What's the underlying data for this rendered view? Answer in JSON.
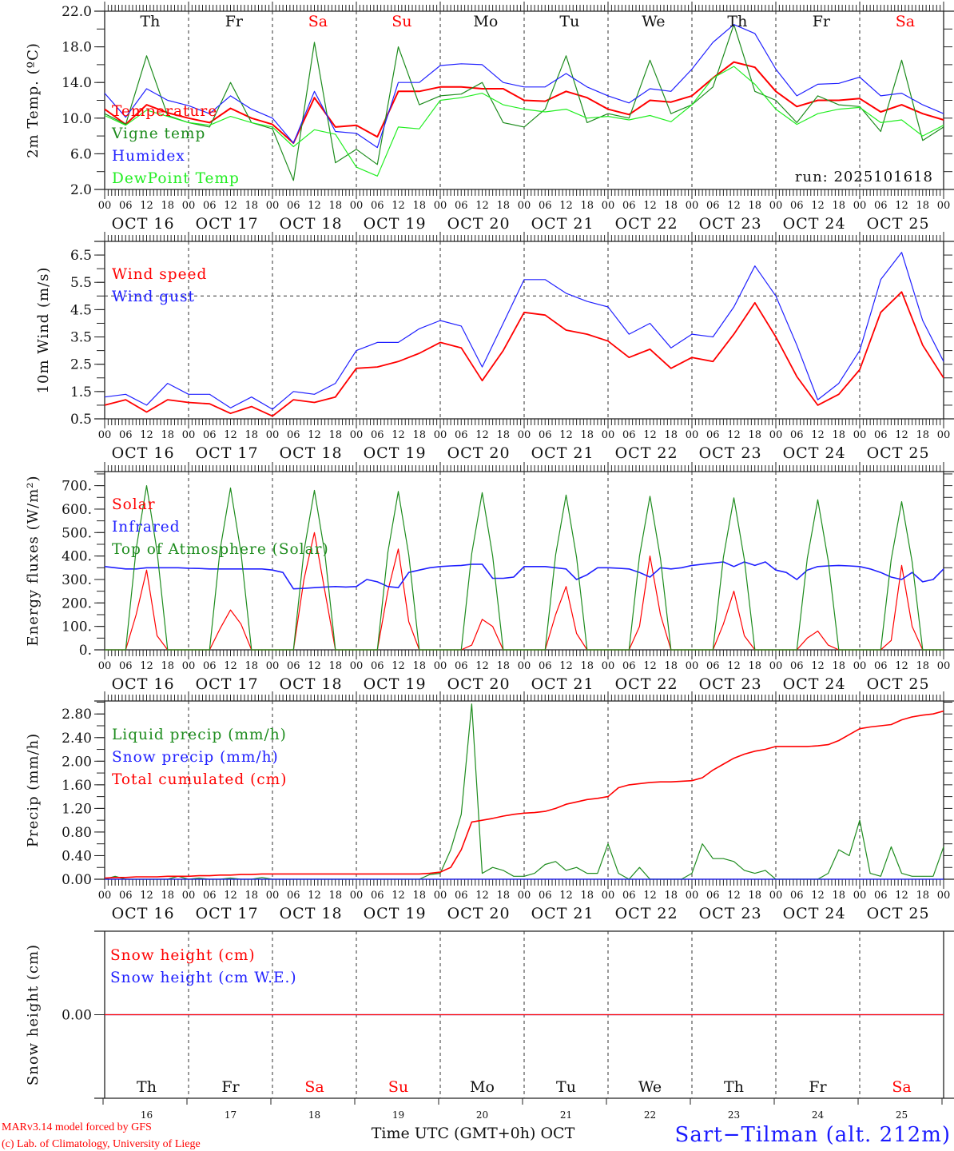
{
  "hour_labels": [
    "00",
    "06",
    "12",
    "18"
  ],
  "date_labels": [
    "OCT 16",
    "OCT 17",
    "OCT 18",
    "OCT 19",
    "OCT 20",
    "OCT 21",
    "OCT 22",
    "OCT 23",
    "OCT 24",
    "OCT 25"
  ],
  "day_names": [
    "Th",
    "Fr",
    "Sa",
    "Su",
    "Mo",
    "Tu",
    "We",
    "Th",
    "Fr",
    "Sa"
  ],
  "day_numbers": [
    "16",
    "17",
    "18",
    "19",
    "20",
    "21",
    "22",
    "23",
    "24",
    "25"
  ],
  "weekend_days": [
    "Sa",
    "Su"
  ],
  "colors": {
    "weekend": "#ff0000",
    "weekday": "#111111"
  },
  "footer": {
    "credit_line1": "MARv3.14 model forced by GFS",
    "credit_line2": "(c) Lab. of Climatology, University of Liege",
    "x_title": "Time UTC (GMT+0h) OCT",
    "station": "Sart−Tilman (alt. 212m)"
  },
  "chart_data": [
    {
      "type": "line",
      "ylabel": "2m Temp. (ºC)",
      "ylim": [
        2.0,
        22.0
      ],
      "yticks": [
        2,
        6,
        10,
        14,
        18,
        22
      ],
      "ytick_labels": [
        "2.0",
        "6.0",
        "10.0",
        "14.0",
        "18.0",
        "22.0"
      ],
      "yminor_step": 2,
      "annotation": "run: 2025101618",
      "legend_position": "top-left",
      "x_start": "OCT 16 00 UTC",
      "step_hours": 6,
      "series": [
        {
          "name": "Temperature",
          "color": "#ff0000",
          "width": 2,
          "values": [
            11.0,
            9.3,
            11.5,
            10.6,
            10.0,
            9.5,
            11.1,
            10.0,
            9.3,
            7.2,
            12.3,
            9.0,
            9.2,
            7.9,
            13.0,
            13.0,
            13.5,
            13.5,
            13.3,
            13.3,
            12.0,
            11.9,
            13.0,
            12.3,
            11.0,
            10.4,
            12.0,
            11.8,
            12.5,
            14.5,
            16.3,
            15.7,
            13.0,
            11.3,
            12.0,
            12.0,
            12.2,
            10.7,
            11.5,
            10.5,
            9.8
          ]
        },
        {
          "name": "Vigne temp",
          "color": "#1e8c1e",
          "width": 1.2,
          "values": [
            10.5,
            9.3,
            17.0,
            10.3,
            9.5,
            9.0,
            14.0,
            9.5,
            8.8,
            3.0,
            18.5,
            5.0,
            6.5,
            4.8,
            18.0,
            11.5,
            12.5,
            12.7,
            14.0,
            9.5,
            9.0,
            11.0,
            17.0,
            9.5,
            10.5,
            10.0,
            16.5,
            10.5,
            11.5,
            13.5,
            20.5,
            13.0,
            12.0,
            9.5,
            12.5,
            11.5,
            11.3,
            8.5,
            16.5,
            7.5,
            9.0
          ]
        },
        {
          "name": "Humidex",
          "color": "#2020ff",
          "width": 1.2,
          "values": [
            12.8,
            10.1,
            13.3,
            12.0,
            11.4,
            10.5,
            12.5,
            11.0,
            10.0,
            7.2,
            13.0,
            8.5,
            8.3,
            6.7,
            14.0,
            14.0,
            15.9,
            16.1,
            16.0,
            14.0,
            13.5,
            13.5,
            15.0,
            13.5,
            12.5,
            11.7,
            13.3,
            13.0,
            15.5,
            18.5,
            20.5,
            19.5,
            15.5,
            12.5,
            13.8,
            13.9,
            14.6,
            12.5,
            12.8,
            11.5,
            10.5
          ]
        },
        {
          "name": "DewPoint Temp",
          "color": "#22ee22",
          "width": 1.2,
          "values": [
            10.3,
            9.2,
            10.9,
            10.2,
            9.5,
            9.2,
            10.2,
            9.5,
            9.0,
            6.8,
            8.7,
            8.2,
            4.5,
            3.5,
            9.0,
            8.8,
            12.0,
            12.3,
            12.8,
            11.5,
            11.0,
            10.7,
            11.0,
            10.0,
            10.2,
            9.8,
            10.3,
            9.6,
            11.5,
            14.5,
            15.8,
            13.8,
            11.0,
            9.3,
            10.5,
            11.0,
            11.2,
            9.5,
            9.8,
            8.0,
            9.2
          ]
        }
      ]
    },
    {
      "type": "line",
      "ylabel": "10m Wind (m/s)",
      "ylim": [
        0.5,
        7.0
      ],
      "yticks": [
        0.5,
        1.5,
        2.5,
        3.5,
        4.5,
        5.5,
        6.5
      ],
      "ytick_labels": [
        "0.5",
        "1.5",
        "2.5",
        "3.5",
        "4.5",
        "5.5",
        "6.5"
      ],
      "yminor_step": 0.5,
      "reference_line": 5.0,
      "legend_position": "top-left",
      "step_hours": 6,
      "series": [
        {
          "name": "Wind speed",
          "color": "#ff0000",
          "width": 1.8,
          "values": [
            1.0,
            1.2,
            0.75,
            1.2,
            1.1,
            1.05,
            0.7,
            0.95,
            0.6,
            1.2,
            1.1,
            1.3,
            2.35,
            2.4,
            2.6,
            2.9,
            3.3,
            3.1,
            1.9,
            3.0,
            4.4,
            4.3,
            3.75,
            3.6,
            3.35,
            2.75,
            3.05,
            2.35,
            2.75,
            2.6,
            3.6,
            4.75,
            3.5,
            2.05,
            1.0,
            1.4,
            2.3,
            4.4,
            5.15,
            3.2,
            2.0
          ]
        },
        {
          "name": "Wind gust",
          "color": "#2020ff",
          "width": 1.2,
          "values": [
            1.3,
            1.4,
            1.0,
            1.8,
            1.4,
            1.4,
            0.9,
            1.3,
            0.85,
            1.5,
            1.4,
            1.8,
            3.0,
            3.3,
            3.3,
            3.8,
            4.1,
            3.9,
            2.4,
            4.0,
            5.6,
            5.6,
            5.1,
            4.8,
            4.6,
            3.6,
            4.0,
            3.1,
            3.6,
            3.5,
            4.6,
            6.1,
            5.0,
            3.2,
            1.2,
            1.8,
            3.0,
            5.6,
            6.6,
            4.1,
            2.6
          ]
        }
      ]
    },
    {
      "type": "line",
      "ylabel": "Energy fluxes (W/m²)",
      "ylim": [
        0,
        760
      ],
      "yticks": [
        0,
        100,
        200,
        300,
        400,
        500,
        600,
        700
      ],
      "ytick_labels": [
        "0.",
        "100.",
        "200.",
        "300.",
        "400.",
        "500.",
        "600.",
        "700."
      ],
      "yminor_step": 50,
      "legend_position": "top-left",
      "step_hours": 3,
      "series": [
        {
          "name": "Solar",
          "color": "#ff0000",
          "width": 1.2,
          "values": [
            0,
            0,
            0,
            150,
            340,
            60,
            0,
            0,
            0,
            0,
            0,
            90,
            170,
            110,
            0,
            0,
            0,
            0,
            0,
            300,
            500,
            250,
            0,
            0,
            0,
            0,
            0,
            250,
            430,
            120,
            0,
            0,
            0,
            0,
            0,
            20,
            130,
            100,
            0,
            0,
            0,
            0,
            0,
            150,
            270,
            70,
            0,
            0,
            0,
            0,
            0,
            100,
            400,
            150,
            0,
            0,
            0,
            0,
            0,
            110,
            250,
            60,
            0,
            0,
            0,
            0,
            0,
            50,
            80,
            20,
            0,
            0,
            0,
            0,
            0,
            40,
            360,
            100,
            0,
            0,
            0
          ]
        },
        {
          "name": "Infrared",
          "color": "#2020ff",
          "width": 1.6,
          "values": [
            355,
            350,
            345,
            345,
            350,
            350,
            350,
            350,
            348,
            347,
            345,
            345,
            345,
            345,
            345,
            345,
            340,
            330,
            260,
            262,
            265,
            268,
            270,
            268,
            270,
            300,
            290,
            270,
            265,
            330,
            340,
            350,
            355,
            358,
            360,
            365,
            365,
            305,
            305,
            310,
            355,
            355,
            355,
            350,
            345,
            300,
            320,
            350,
            350,
            348,
            345,
            330,
            310,
            350,
            345,
            350,
            360,
            365,
            370,
            375,
            355,
            375,
            360,
            375,
            340,
            330,
            300,
            340,
            355,
            358,
            360,
            358,
            355,
            345,
            330,
            310,
            300,
            330,
            290,
            300,
            345
          ]
        },
        {
          "name": "Top of Atmosphere (Solar)",
          "color": "#1e8c1e",
          "width": 1.2,
          "values": [
            0,
            0,
            0,
            430,
            700,
            420,
            0,
            0,
            0,
            0,
            0,
            425,
            690,
            415,
            0,
            0,
            0,
            0,
            0,
            420,
            680,
            410,
            0,
            0,
            0,
            0,
            0,
            415,
            675,
            405,
            0,
            0,
            0,
            0,
            0,
            410,
            670,
            400,
            0,
            0,
            0,
            0,
            0,
            405,
            660,
            395,
            0,
            0,
            0,
            0,
            0,
            400,
            655,
            390,
            0,
            0,
            0,
            0,
            0,
            395,
            648,
            385,
            0,
            0,
            0,
            0,
            0,
            390,
            640,
            380,
            0,
            0,
            0,
            0,
            0,
            385,
            632,
            375,
            0,
            0,
            0
          ]
        }
      ]
    },
    {
      "type": "line",
      "ylabel": "Precip (mm/h)",
      "ylim": [
        0,
        3.02
      ],
      "yticks": [
        0,
        0.4,
        0.8,
        1.2,
        1.6,
        2.0,
        2.4,
        2.8
      ],
      "ytick_labels": [
        "0.00",
        "0.40",
        "0.80",
        "1.20",
        "1.60",
        "2.00",
        "2.40",
        "2.80"
      ],
      "yminor_step": 0.2,
      "legend_position": "top-left",
      "step_hours": 3,
      "series": [
        {
          "name": "Liquid precip (mm/h)",
          "color": "#1e8c1e",
          "width": 1.2,
          "values": [
            0,
            0.05,
            0,
            0,
            0,
            0,
            0,
            0.05,
            0,
            0.02,
            0,
            0,
            0.02,
            0,
            0,
            0.03,
            0,
            0,
            0,
            0,
            0,
            0,
            0,
            0,
            0,
            0,
            0,
            0,
            0,
            0,
            0,
            0.08,
            0.1,
            0.5,
            1.1,
            2.97,
            0.1,
            0.2,
            0.15,
            0.05,
            0.05,
            0.1,
            0.25,
            0.3,
            0.15,
            0.2,
            0.1,
            0.1,
            0.6,
            0.1,
            0,
            0.2,
            0,
            0,
            0,
            0,
            0.1,
            0.6,
            0.35,
            0.35,
            0.3,
            0.15,
            0.1,
            0.15,
            0,
            0,
            0,
            0,
            0,
            0.1,
            0.5,
            0.4,
            1.0,
            0.1,
            0.05,
            0.55,
            0.1,
            0.05,
            0.05,
            0.05,
            0.55
          ]
        },
        {
          "name": "Snow precip (mm/h)",
          "color": "#2020ff",
          "width": 1.2,
          "values": [
            0,
            0,
            0,
            0,
            0,
            0,
            0,
            0,
            0,
            0,
            0,
            0,
            0,
            0,
            0,
            0,
            0,
            0,
            0,
            0,
            0,
            0,
            0,
            0,
            0,
            0,
            0,
            0,
            0,
            0,
            0,
            0,
            0,
            0,
            0,
            0,
            0,
            0,
            0,
            0,
            0,
            0,
            0,
            0,
            0,
            0,
            0,
            0,
            0,
            0,
            0,
            0,
            0,
            0,
            0,
            0,
            0,
            0,
            0,
            0,
            0,
            0,
            0,
            0,
            0,
            0,
            0,
            0,
            0,
            0,
            0,
            0,
            0,
            0,
            0,
            0,
            0,
            0,
            0,
            0,
            0
          ]
        },
        {
          "name": "Total cumulated (cm)",
          "color": "#ff0000",
          "width": 1.6,
          "values": [
            0.02,
            0.03,
            0.03,
            0.04,
            0.04,
            0.04,
            0.05,
            0.05,
            0.05,
            0.06,
            0.06,
            0.07,
            0.07,
            0.08,
            0.08,
            0.09,
            0.09,
            0.09,
            0.09,
            0.09,
            0.09,
            0.09,
            0.09,
            0.09,
            0.09,
            0.09,
            0.09,
            0.09,
            0.09,
            0.09,
            0.09,
            0.1,
            0.12,
            0.2,
            0.5,
            0.97,
            1.0,
            1.03,
            1.07,
            1.1,
            1.12,
            1.13,
            1.15,
            1.2,
            1.27,
            1.31,
            1.35,
            1.37,
            1.4,
            1.55,
            1.6,
            1.62,
            1.64,
            1.65,
            1.65,
            1.66,
            1.67,
            1.72,
            1.85,
            1.95,
            2.05,
            2.12,
            2.17,
            2.2,
            2.25,
            2.25,
            2.25,
            2.25,
            2.26,
            2.28,
            2.35,
            2.45,
            2.55,
            2.58,
            2.6,
            2.62,
            2.7,
            2.75,
            2.78,
            2.8,
            2.85
          ]
        }
      ]
    },
    {
      "type": "line",
      "ylabel": "Snow height (cm)",
      "ylim": [
        -1,
        1
      ],
      "yticks": [
        0
      ],
      "ytick_labels": [
        "0.00"
      ],
      "legend_position": "top-left",
      "step_hours": 240,
      "series": [
        {
          "name": "Snow height (cm W.E.)",
          "color": "#2020ff",
          "width": 1.2,
          "values": [
            0,
            0
          ]
        },
        {
          "name": "Snow height (cm)",
          "color": "#ff0000",
          "width": 1.2,
          "values": [
            0,
            0
          ]
        }
      ],
      "legend_order": [
        "Snow height (cm)",
        "Snow height (cm W.E.)"
      ]
    }
  ]
}
